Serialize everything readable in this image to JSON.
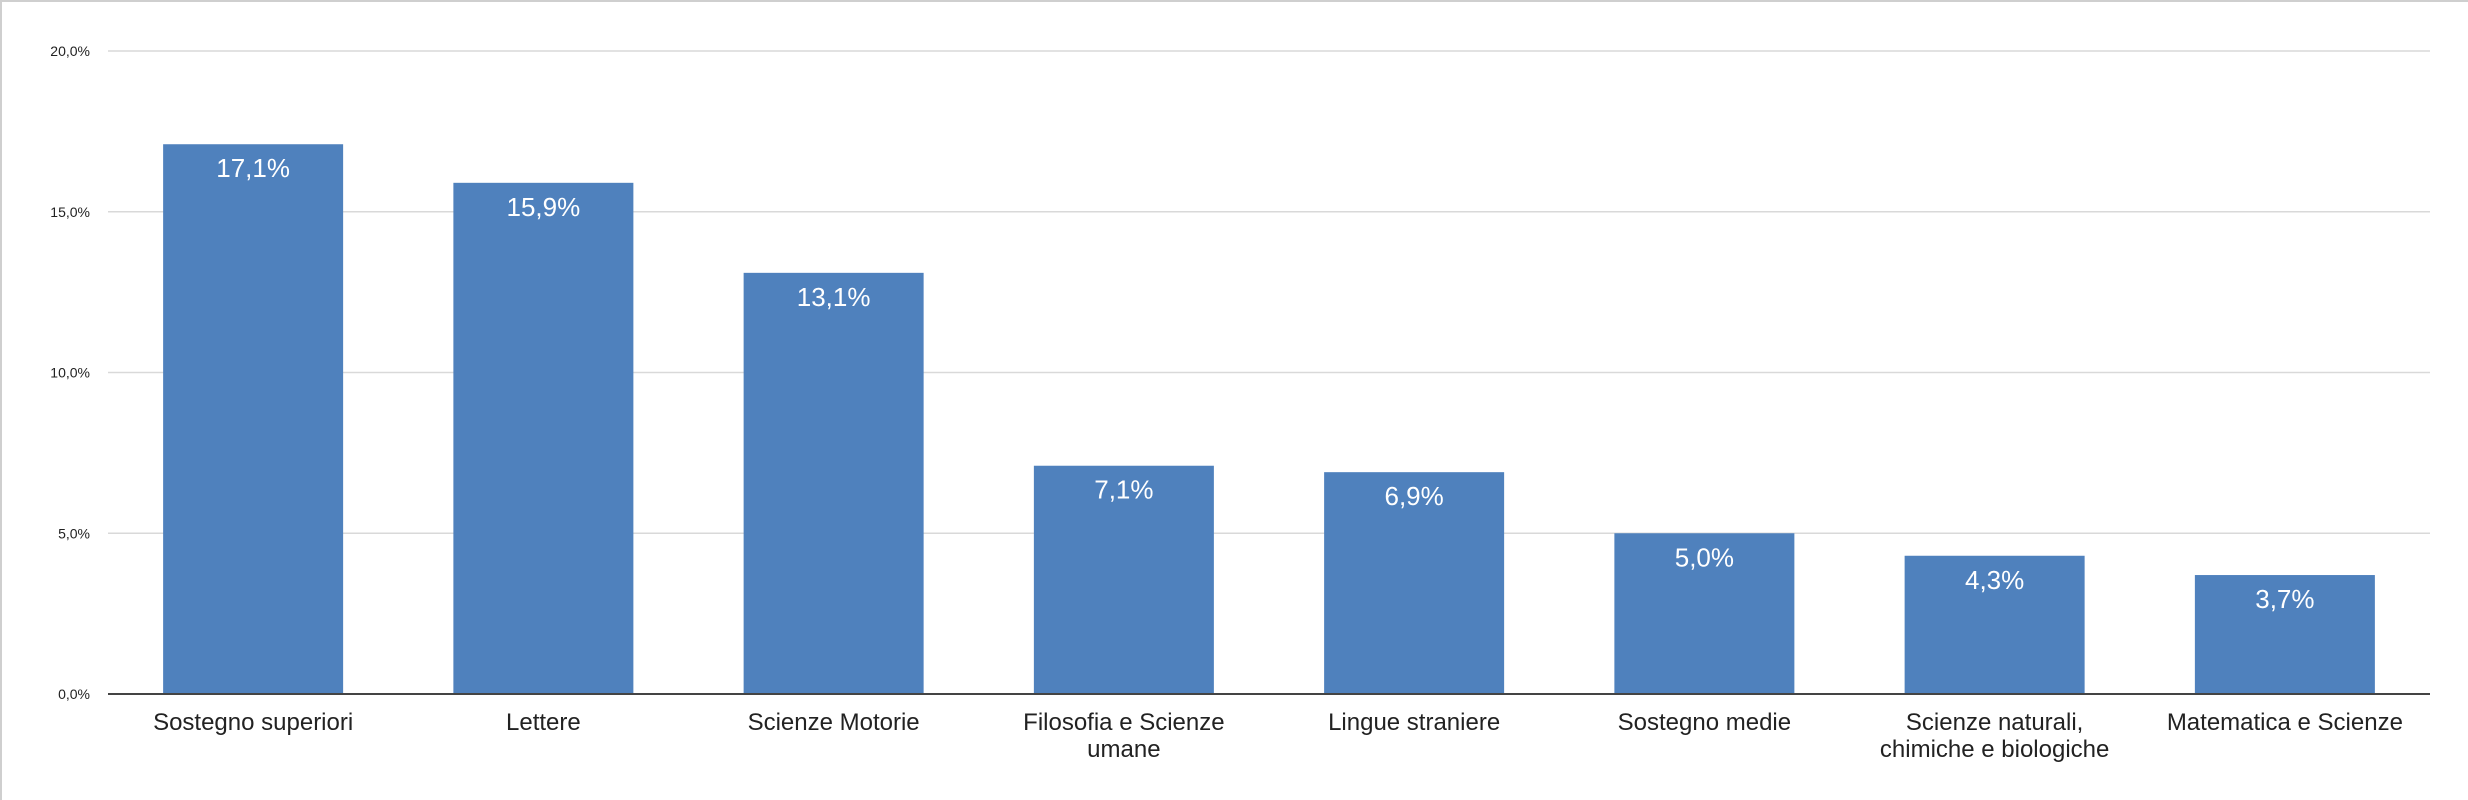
{
  "chart_data": {
    "type": "bar",
    "title": "",
    "xlabel": "",
    "ylabel": "",
    "ylim": [
      0,
      20
    ],
    "y_ticks": [
      "0,0%",
      "5,0%",
      "10,0%",
      "15,0%",
      "20,0%"
    ],
    "y_tick_values": [
      0,
      5,
      10,
      15,
      20
    ],
    "grid": true,
    "legend": "none",
    "categories": [
      [
        "Sostegno superiori"
      ],
      [
        "Lettere"
      ],
      [
        "Scienze Motorie"
      ],
      [
        "Filosofia e Scienze",
        "umane"
      ],
      [
        "Lingue straniere"
      ],
      [
        "Sostegno medie"
      ],
      [
        "Scienze naturali,",
        "chimiche e biologiche"
      ],
      [
        "Matematica e Scienze"
      ]
    ],
    "values": [
      17.1,
      15.9,
      13.1,
      7.1,
      6.9,
      5.0,
      4.3,
      3.7
    ],
    "data_labels": [
      "17,1%",
      "15,9%",
      "13,1%",
      "7,1%",
      "6,9%",
      "5,0%",
      "4,3%",
      "3,7%"
    ],
    "colors": {
      "bar": "#4f81bd",
      "grid": "#d9d9d9",
      "axis": "#444444"
    }
  }
}
